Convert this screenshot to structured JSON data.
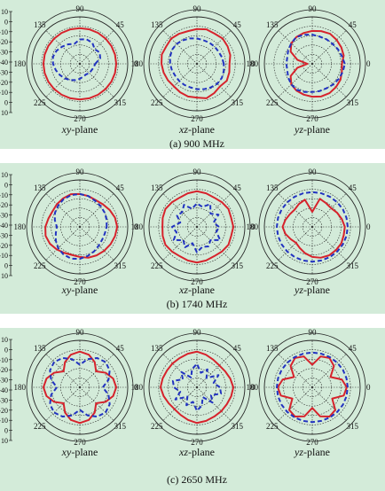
{
  "colors": {
    "background": "#d3ebd9",
    "grid": "#222222",
    "series_solid": "#d6232c",
    "series_dashed": "#2233c0"
  },
  "chart_data": [
    {
      "type": "polar",
      "caption": "(a) 900 MHz",
      "r_tick_labels": [
        "10",
        "0",
        "-10",
        "-20",
        "-30",
        "-40",
        "-30",
        "-20",
        "-10",
        "0",
        "10"
      ],
      "angle_labels": [
        "90",
        "45",
        "0",
        "315",
        "270",
        "225",
        "180",
        "135"
      ],
      "plots": [
        {
          "label_italic": "xy",
          "label_suffix": "-plane",
          "series": [
            {
              "style": "solid",
              "color": "#d6232c",
              "r": [
                -2,
                -2,
                -2,
                -2,
                -2,
                -2,
                -2,
                -2,
                -2,
                -2,
                -2,
                -2,
                -2,
                -2,
                -2,
                -2,
                -2,
                -2,
                -2,
                -2,
                -2,
                -2,
                -2,
                -2
              ]
            },
            {
              "style": "dashed",
              "color": "#2233c0",
              "r": [
                -24,
                -18,
                -16,
                -18,
                -14,
                -13,
                -14,
                -18,
                -16,
                -14,
                -12,
                -11,
                -12,
                -14,
                -16,
                -18,
                -20,
                -22,
                -24,
                -26,
                -27,
                -26,
                -26,
                -25
              ]
            }
          ]
        },
        {
          "label_italic": "xz",
          "label_suffix": "-plane",
          "series": [
            {
              "style": "solid",
              "color": "#d6232c",
              "r": [
                -6,
                -4,
                -3,
                -2,
                -3,
                -2,
                -3,
                -4,
                -3,
                -2,
                -3,
                -2,
                -3,
                -4,
                -5,
                -6,
                -5,
                -4,
                -4,
                -2,
                -4,
                -6,
                -4,
                -5
              ]
            },
            {
              "style": "dashed",
              "color": "#2233c0",
              "r": [
                -12,
                -13,
                -14,
                -14,
                -14,
                -14,
                -13,
                -12,
                -11,
                -10,
                -10,
                -11,
                -12,
                -13,
                -14,
                -14,
                -14,
                -14,
                -13,
                -12,
                -11,
                -10,
                -10,
                -11
              ]
            }
          ]
        },
        {
          "label_italic": "yz",
          "label_suffix": "-plane",
          "series": [
            {
              "style": "solid",
              "color": "#d6232c",
              "r": [
                -9,
                -6,
                -5,
                -4,
                -3,
                -4,
                -5,
                -6,
                -7,
                -9,
                -14,
                -24,
                -35,
                -24,
                -14,
                -9,
                -7,
                -6,
                -5,
                -4,
                -4,
                -5,
                -6,
                -8
              ]
            },
            {
              "style": "dashed",
              "color": "#2233c0",
              "r": [
                -6,
                -8,
                -9,
                -10,
                -10,
                -10,
                -9,
                -8,
                -7,
                -9,
                -11,
                -13,
                -13,
                -13,
                -11,
                -9,
                -8,
                -9,
                -10,
                -10,
                -10,
                -9,
                -8,
                -7
              ]
            }
          ]
        }
      ]
    },
    {
      "type": "polar",
      "caption": "(b) 1740 MHz",
      "r_tick_labels": [
        "10",
        "0",
        "-10",
        "-20",
        "-30",
        "-40",
        "-30",
        "-20",
        "-10",
        "0",
        "10"
      ],
      "angle_labels": [
        "90",
        "45",
        "0",
        "315",
        "270",
        "225",
        "180",
        "135"
      ],
      "plots": [
        {
          "label_italic": "xy",
          "label_suffix": "-plane",
          "series": [
            {
              "style": "solid",
              "color": "#d6232c",
              "r": [
                -1,
                -2,
                -4,
                -6,
                -7,
                -6,
                -5,
                -4,
                -5,
                -6,
                -7,
                -6,
                -4,
                -3,
                -4,
                -6,
                -8,
                -9,
                -8,
                -6,
                -5,
                -4,
                -3,
                -2
              ]
            },
            {
              "style": "dashed",
              "color": "#2233c0",
              "r": [
                -12,
                -11,
                -10,
                -9,
                -8,
                -6,
                -5,
                -5,
                -6,
                -8,
                -10,
                -13,
                -16,
                -14,
                -11,
                -8,
                -6,
                -5,
                -6,
                -8,
                -10,
                -12,
                -13,
                -13
              ]
            }
          ]
        },
        {
          "label_italic": "xz",
          "label_suffix": "-plane",
          "series": [
            {
              "style": "solid",
              "color": "#d6232c",
              "r": [
                -2,
                -3,
                -2,
                -3,
                -4,
                -3,
                -2,
                -3,
                -4,
                -3,
                -2,
                -3,
                -4,
                -3,
                -2,
                -3,
                -4,
                -3,
                -2,
                -3,
                -4,
                -3,
                -2,
                -3
              ]
            },
            {
              "style": "dashed",
              "color": "#2233c0",
              "r": [
                -17,
                -22,
                -14,
                -20,
                -12,
                -18,
                -15,
                -20,
                -13,
                -18,
                -16,
                -22,
                -14,
                -18,
                -12,
                -20,
                -15,
                -22,
                -13,
                -18,
                -16,
                -20,
                -12,
                -19
              ]
            }
          ]
        },
        {
          "label_italic": "yz",
          "label_suffix": "-plane",
          "series": [
            {
              "style": "solid",
              "color": "#d6232c",
              "r": [
                -6,
                -8,
                -10,
                -12,
                -11,
                -9,
                -24,
                -10,
                -12,
                -14,
                -13,
                -11,
                -9,
                -11,
                -14,
                -16,
                -14,
                -11,
                -8,
                -6,
                -5,
                -5,
                -5,
                -6
              ]
            },
            {
              "style": "dashed",
              "color": "#2233c0",
              "r": [
                -3,
                -3,
                -3,
                -3,
                -3,
                -3,
                -3,
                -3,
                -3,
                -3,
                -3,
                -3,
                -3,
                -3,
                -3,
                -3,
                -3,
                -3,
                -3,
                -3,
                -3,
                -3,
                -3,
                -3
              ]
            }
          ]
        }
      ]
    },
    {
      "type": "polar",
      "caption": "(c) 2650 MHz",
      "r_tick_labels": [
        "10",
        "0",
        "-10",
        "-20",
        "-30",
        "-40",
        "-30",
        "-20",
        "-10",
        "0",
        "10"
      ],
      "angle_labels": [
        "90",
        "45",
        "0",
        "315",
        "270",
        "225",
        "180",
        "135"
      ],
      "plots": [
        {
          "label_italic": "xy",
          "label_suffix": "-plane",
          "series": [
            {
              "style": "solid",
              "color": "#d6232c",
              "r": [
                -2,
                -4,
                -9,
                -16,
                -9,
                -4,
                -2,
                -4,
                -9,
                -16,
                -9,
                -4,
                -2,
                -4,
                -9,
                -16,
                -9,
                -4,
                -2,
                -4,
                -9,
                -16,
                -9,
                -4
              ]
            },
            {
              "style": "dashed",
              "color": "#2233c0",
              "r": [
                -16,
                -9,
                -4,
                -2,
                -4,
                -9,
                -16,
                -9,
                -4,
                -2,
                -4,
                -9,
                -16,
                -9,
                -4,
                -2,
                -4,
                -9,
                -16,
                -9,
                -4,
                -2,
                -4,
                -9
              ]
            }
          ]
        },
        {
          "label_italic": "xz",
          "label_suffix": "-plane",
          "series": [
            {
              "style": "solid",
              "color": "#d6232c",
              "r": [
                -2,
                -4,
                -6,
                -7,
                -6,
                -4,
                -2,
                -3,
                -4,
                -4,
                -4,
                -3,
                -2,
                -4,
                -6,
                -7,
                -6,
                -4,
                -2,
                -3,
                -4,
                -4,
                -4,
                -3
              ]
            },
            {
              "style": "dashed",
              "color": "#2233c0",
              "r": [
                -16,
                -22,
                -14,
                -26,
                -18,
                -24,
                -15,
                -20,
                -28,
                -17,
                -23,
                -14,
                -16,
                -22,
                -14,
                -26,
                -18,
                -24,
                -15,
                -20,
                -28,
                -17,
                -23,
                -14
              ]
            }
          ]
        },
        {
          "label_italic": "yz",
          "label_suffix": "-plane",
          "series": [
            {
              "style": "solid",
              "color": "#d6232c",
              "r": [
                -4,
                -8,
                -18,
                -8,
                -4,
                -6,
                -16,
                -6,
                -4,
                -8,
                -18,
                -8,
                -4,
                -6,
                -16,
                -6,
                -4,
                -8,
                -18,
                -8,
                -4,
                -6,
                -16,
                -6
              ]
            },
            {
              "style": "dashed",
              "color": "#2233c0",
              "r": [
                -3,
                -3,
                -3,
                -3,
                -3,
                -3,
                -3,
                -3,
                -3,
                -3,
                -3,
                -3,
                -3,
                -3,
                -3,
                -3,
                -3,
                -3,
                -3,
                -3,
                -3,
                -3,
                -3,
                -3
              ]
            }
          ]
        }
      ]
    }
  ]
}
